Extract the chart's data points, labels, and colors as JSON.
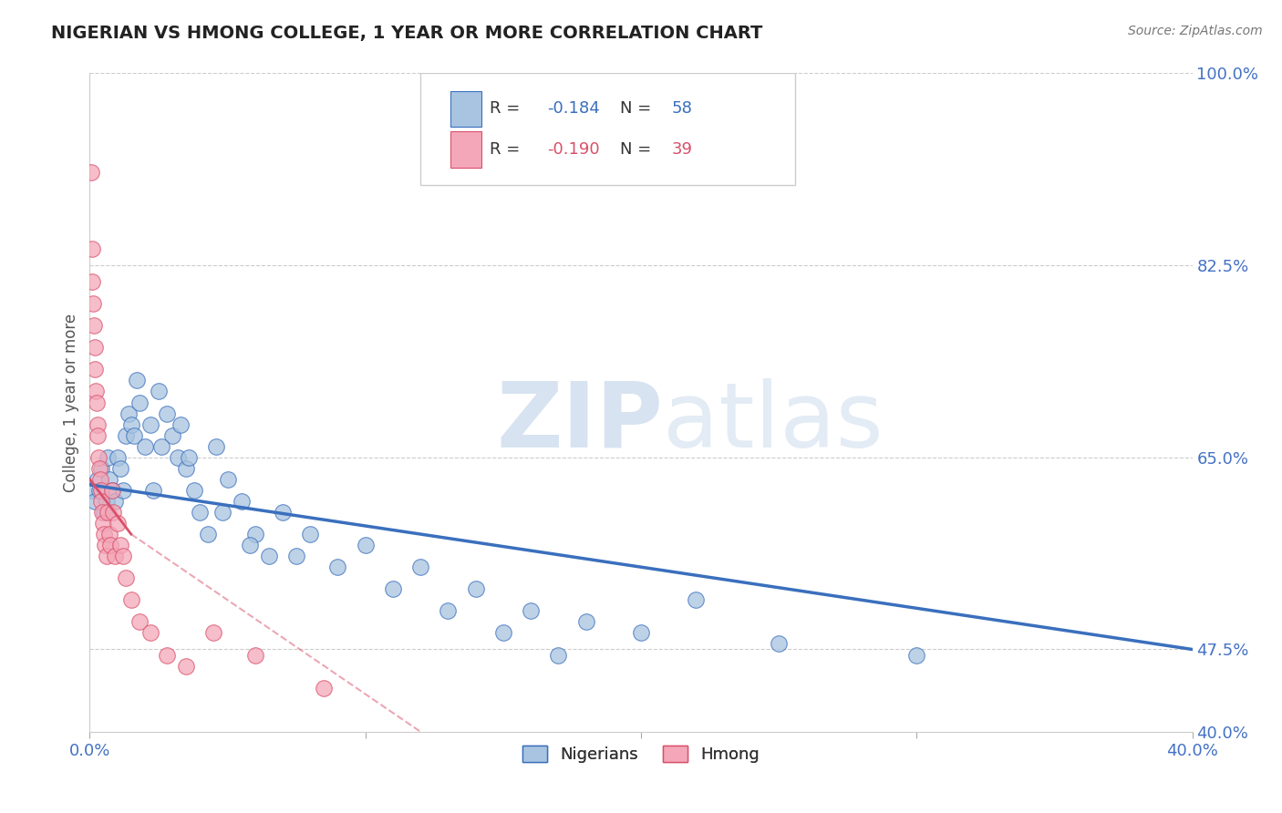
{
  "title": "NIGERIAN VS HMONG COLLEGE, 1 YEAR OR MORE CORRELATION CHART",
  "source": "Source: ZipAtlas.com",
  "ylabel": "College, 1 year or more",
  "xlim": [
    0.0,
    40.0
  ],
  "ylim": [
    40.0,
    100.0
  ],
  "nigerian_R": -0.184,
  "nigerian_N": 58,
  "hmong_R": -0.19,
  "hmong_N": 39,
  "nigerian_color": "#a8c4e0",
  "hmong_color": "#f4a7b9",
  "nigerian_line_color": "#3a6fbd",
  "hmong_line_color": "#d9506a",
  "legend_label_nigerian": "Nigerians",
  "legend_label_hmong": "Hmong",
  "watermark_zip": "ZIP",
  "watermark_atlas": "atlas",
  "grid_color": "#cccccc",
  "tick_label_color": "#4472c4",
  "axis_label_color": "#555555",
  "nigerian_x": [
    0.1,
    0.2,
    0.3,
    0.35,
    0.4,
    0.5,
    0.6,
    0.65,
    0.7,
    0.8,
    0.9,
    1.0,
    1.1,
    1.2,
    1.3,
    1.4,
    1.5,
    1.6,
    1.7,
    1.8,
    2.0,
    2.2,
    2.5,
    2.8,
    3.0,
    3.2,
    3.5,
    3.8,
    4.0,
    4.3,
    4.6,
    5.0,
    5.5,
    6.0,
    6.5,
    7.0,
    8.0,
    9.0,
    10.0,
    11.0,
    12.0,
    13.0,
    14.0,
    15.0,
    16.0,
    17.0,
    18.0,
    20.0,
    22.0,
    25.0,
    2.3,
    2.6,
    3.3,
    3.6,
    4.8,
    5.8,
    7.5,
    30.0
  ],
  "nigerian_y": [
    62,
    61,
    63,
    62,
    64,
    60,
    61,
    65,
    63,
    62,
    61,
    65,
    64,
    62,
    67,
    69,
    68,
    67,
    72,
    70,
    66,
    68,
    71,
    69,
    67,
    65,
    64,
    62,
    60,
    58,
    66,
    63,
    61,
    58,
    56,
    60,
    58,
    55,
    57,
    53,
    55,
    51,
    53,
    49,
    51,
    47,
    50,
    49,
    52,
    48,
    62,
    66,
    68,
    65,
    60,
    57,
    56,
    47
  ],
  "hmong_x": [
    0.05,
    0.08,
    0.1,
    0.12,
    0.15,
    0.18,
    0.2,
    0.22,
    0.25,
    0.28,
    0.3,
    0.32,
    0.35,
    0.38,
    0.4,
    0.42,
    0.45,
    0.48,
    0.5,
    0.55,
    0.6,
    0.65,
    0.7,
    0.75,
    0.8,
    0.85,
    0.9,
    1.0,
    1.1,
    1.2,
    1.3,
    1.5,
    1.8,
    2.2,
    2.8,
    3.5,
    4.5,
    6.0,
    8.5
  ],
  "hmong_y": [
    91,
    84,
    81,
    79,
    77,
    75,
    73,
    71,
    70,
    68,
    67,
    65,
    64,
    63,
    62,
    61,
    60,
    59,
    58,
    57,
    56,
    60,
    58,
    57,
    62,
    60,
    56,
    59,
    57,
    56,
    54,
    52,
    50,
    49,
    47,
    46,
    49,
    47,
    44
  ],
  "nigerian_line_x0": 0.0,
  "nigerian_line_x1": 40.0,
  "nigerian_line_y0": 62.5,
  "nigerian_line_y1": 47.5,
  "hmong_solid_x0": 0.0,
  "hmong_solid_x1": 1.5,
  "hmong_solid_y0": 63.0,
  "hmong_solid_y1": 58.0,
  "hmong_dash_x0": 1.5,
  "hmong_dash_x1": 12.0,
  "hmong_dash_y0": 58.0,
  "hmong_dash_y1": 40.0
}
